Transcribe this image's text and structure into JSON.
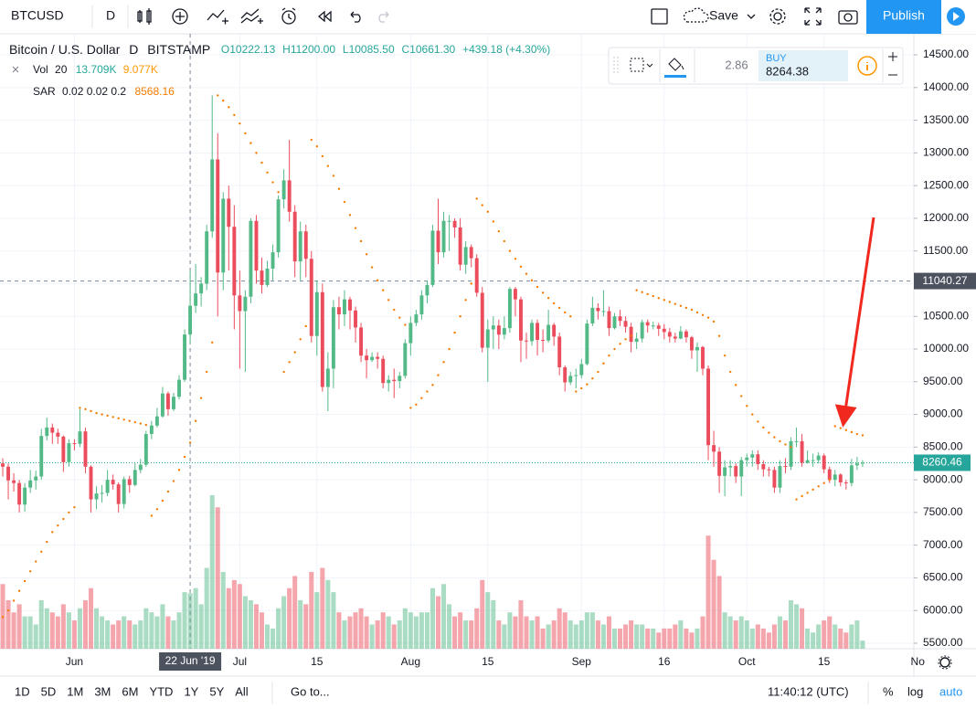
{
  "toolbar": {
    "symbol": "BTCUSD",
    "interval": "D",
    "save": "Save",
    "publish": "Publish"
  },
  "legend": {
    "title": "Bitcoin / U.S. Dollar",
    "interval": "D",
    "exchange": "BITSTAMP",
    "ohlc": [
      "O10222.13",
      "H11200.00",
      "L10085.50",
      "C10661.30"
    ],
    "change": "+439.18 (+4.30%)"
  },
  "indicators": [
    {
      "name": "Vol",
      "params": "20",
      "values": [
        "13.709K",
        "9.077K"
      ]
    },
    {
      "name": "SAR",
      "params": "0.02 0.02 0.2",
      "values": [
        "8568.16"
      ]
    }
  ],
  "trade": {
    "spread": "2.86",
    "side": "BUY",
    "price": "8264.38"
  },
  "chart_data": {
    "type": "candlestick",
    "up_color": "#53b987",
    "down_color": "#eb4d5c",
    "sar_color": "#f57c00",
    "ylim": [
      5416,
      14822
    ],
    "xlim": [
      -0.5,
      165.3
    ],
    "yticks": [
      {
        "value": 5500,
        "label": "5500.00"
      },
      {
        "value": 6000,
        "label": "6000.00"
      },
      {
        "value": 6500,
        "label": "6500.00"
      },
      {
        "value": 7000,
        "label": "7000.00"
      },
      {
        "value": 7500,
        "label": "7500.00"
      },
      {
        "value": 8000,
        "label": "8000.00"
      },
      {
        "value": 8500,
        "label": "8500.00"
      },
      {
        "value": 9000,
        "label": "9000.00"
      },
      {
        "value": 9500,
        "label": "9500.00"
      },
      {
        "value": 10000,
        "label": "10000.00"
      },
      {
        "value": 10500,
        "label": "10500.00"
      },
      {
        "value": 11000,
        "label": "11000.00"
      },
      {
        "value": 11500,
        "label": "11500.00"
      },
      {
        "value": 12000,
        "label": "12000.00"
      },
      {
        "value": 12500,
        "label": "12500.00"
      },
      {
        "value": 13000,
        "label": "13000.00"
      },
      {
        "value": 13500,
        "label": "13500.00"
      },
      {
        "value": 14000,
        "label": "14000.00"
      },
      {
        "value": 14500,
        "label": "14500.00"
      }
    ],
    "xticks": [
      {
        "value": 13,
        "label": "Jun"
      },
      {
        "value": 43,
        "label": "Jul"
      },
      {
        "value": 57,
        "label": "15"
      },
      {
        "value": 74,
        "label": "Aug"
      },
      {
        "value": 88,
        "label": "15"
      },
      {
        "value": 105,
        "label": "Sep"
      },
      {
        "value": 120,
        "label": "16"
      },
      {
        "value": 135,
        "label": "Oct"
      },
      {
        "value": 149,
        "label": "15"
      },
      {
        "value": 166,
        "label": "No"
      }
    ],
    "grid": true,
    "crosshair": {
      "x": 34,
      "x_label": "22 Jun '19",
      "price": 11040.27
    },
    "open": [
      8250,
      8200,
      7990,
      7950,
      7620,
      7880,
      7990,
      8050,
      8670,
      8800,
      8720,
      8660,
      8270,
      8560,
      8550,
      8740,
      8200,
      7700,
      7790,
      7800,
      8000,
      7930,
      7630,
      8010,
      7920,
      8150,
      8230,
      8700,
      8830,
      8970,
      9320,
      9080,
      9270,
      9530,
      10222.13,
      10661.3,
      10850,
      11000,
      11800,
      12900,
      11170,
      12300,
      11870,
      10820,
      10580,
      10800,
      11960,
      11200,
      10980,
      11230,
      11480,
      12290,
      12580,
      12100,
      11340,
      11800,
      11380,
      10200,
      10870,
      9420,
      9700,
      10640,
      10530,
      10760,
      10590,
      10330,
      9900,
      9830,
      9880,
      9850,
      9480,
      9530,
      9510,
      9590,
      10090,
      10400,
      10530,
      10820,
      10980,
      11810,
      11480,
      11960,
      11960,
      11860,
      11290,
      11560,
      11390,
      10860,
      10020,
      10300,
      10360,
      10220,
      10320,
      10920,
      10760,
      10130,
      10120,
      10400,
      10140,
      10130,
      10370,
      10190,
      9720,
      9490,
      9590,
      9600,
      9770,
      10390,
      10630,
      10580,
      10580,
      10320,
      10500,
      10430,
      10340,
      10110,
      10160,
      10410,
      10360,
      10360,
      10310,
      10260,
      10190,
      10160,
      10270,
      10180,
      9980,
      10030,
      9700,
      8530,
      8430,
      8060,
      8190,
      8210,
      8050,
      8300,
      8340,
      8390,
      8240,
      8160,
      8150,
      7880,
      8210,
      8200,
      8590,
      8590,
      8260,
      8300,
      8300,
      8370,
      8160,
      8000,
      8080,
      7960,
      7950,
      8220,
      8250
    ],
    "high": [
      8330,
      8250,
      8100,
      8000,
      7950,
      8150,
      8140,
      8780,
      8950,
      8860,
      8780,
      8680,
      8620,
      8620,
      9080,
      8800,
      8220,
      7900,
      7920,
      8150,
      8080,
      7960,
      8050,
      8060,
      8250,
      8320,
      8750,
      8900,
      9100,
      9420,
      9350,
      9330,
      9600,
      10300,
      11200,
      11300,
      11100,
      11900,
      13880,
      13300,
      12400,
      12500,
      12200,
      11200,
      10900,
      12000,
      12050,
      11400,
      11350,
      11600,
      12350,
      12750,
      13200,
      12200,
      11950,
      11900,
      11500,
      11050,
      11000,
      9950,
      10750,
      10800,
      10900,
      10800,
      10650,
      10400,
      10000,
      9950,
      9950,
      9900,
      9600,
      9700,
      9650,
      10150,
      10500,
      10600,
      10900,
      11050,
      11900,
      12300,
      12100,
      12050,
      12000,
      12000,
      11650,
      11600,
      11450,
      10950,
      10450,
      10500,
      10450,
      10500,
      10950,
      10950,
      10800,
      10250,
      10450,
      10450,
      10300,
      10600,
      10400,
      10250,
      9750,
      9650,
      9700,
      9850,
      10450,
      10800,
      10700,
      10900,
      10650,
      10550,
      10600,
      10500,
      10400,
      10250,
      10450,
      10450,
      10420,
      10400,
      10380,
      10320,
      10250,
      10350,
      10300,
      10200,
      10100,
      10050,
      9750,
      8750,
      8500,
      8300,
      8300,
      8250,
      8350,
      8400,
      8450,
      8450,
      8300,
      8200,
      8200,
      8300,
      8330,
      8650,
      8800,
      8700,
      8450,
      8400,
      8420,
      8400,
      8200,
      8150,
      8100,
      8000,
      8320,
      8350,
      8300
    ],
    "low": [
      8050,
      7700,
      7820,
      7500,
      7510,
      7800,
      7850,
      8000,
      8600,
      8550,
      8550,
      8120,
      8200,
      8450,
      8500,
      8100,
      7500,
      7550,
      7650,
      7750,
      7850,
      7500,
      7560,
      7800,
      7900,
      8100,
      8200,
      8620,
      8800,
      8950,
      8980,
      9050,
      9230,
      9500,
      10085.5,
      10550,
      10650,
      10900,
      11700,
      10500,
      10900,
      11200,
      10300,
      9700,
      9650,
      10700,
      11000,
      10850,
      10950,
      11050,
      11400,
      12150,
      11950,
      11100,
      11050,
      11100,
      10100,
      9900,
      9350,
      9050,
      9400,
      10300,
      10350,
      10300,
      10100,
      9800,
      9550,
      9800,
      9700,
      9400,
      9350,
      9250,
      9400,
      9550,
      9900,
      10350,
      10450,
      10700,
      10950,
      11300,
      11400,
      11500,
      11700,
      11200,
      11150,
      11250,
      10800,
      9950,
      9500,
      10000,
      10000,
      10150,
      10250,
      10500,
      9800,
      9850,
      10050,
      9900,
      9950,
      10100,
      10050,
      9600,
      9350,
      9450,
      9400,
      9550,
      9750,
      10350,
      10450,
      10500,
      10200,
      10300,
      10350,
      10250,
      9950,
      10000,
      10100,
      10250,
      10300,
      10200,
      10150,
      10100,
      10100,
      10150,
      10100,
      9850,
      9650,
      9600,
      8300,
      8200,
      7800,
      7750,
      8050,
      7950,
      7750,
      8200,
      8200,
      8150,
      8050,
      8050,
      7800,
      7800,
      8100,
      8150,
      8500,
      8200,
      8250,
      8200,
      8250,
      8100,
      7950,
      7900,
      7900,
      7850,
      7900,
      8150,
      8200
    ],
    "close": [
      8200,
      7990,
      7950,
      7620,
      7880,
      7990,
      8050,
      8670,
      8800,
      8720,
      8660,
      8270,
      8560,
      8550,
      8740,
      8200,
      7700,
      7790,
      7800,
      8000,
      7930,
      7630,
      8010,
      7920,
      8150,
      8230,
      8700,
      8830,
      8970,
      9320,
      9080,
      9270,
      9530,
      10222.13,
      10661.3,
      10850,
      11000,
      11800,
      12900,
      11170,
      12300,
      11870,
      10820,
      10580,
      10800,
      11960,
      11200,
      10980,
      11230,
      11480,
      12290,
      12580,
      12100,
      11340,
      11800,
      11380,
      10200,
      10870,
      9420,
      9700,
      10640,
      10530,
      10760,
      10590,
      10330,
      9900,
      9830,
      9880,
      9850,
      9480,
      9530,
      9510,
      9590,
      10090,
      10400,
      10530,
      10820,
      10980,
      11810,
      11480,
      11960,
      11960,
      11860,
      11290,
      11560,
      11390,
      10860,
      10020,
      10300,
      10360,
      10220,
      10320,
      10920,
      10760,
      10130,
      10120,
      10400,
      10140,
      10130,
      10370,
      10190,
      9720,
      9490,
      9590,
      9600,
      9770,
      10390,
      10630,
      10580,
      10580,
      10320,
      10500,
      10430,
      10340,
      10110,
      10160,
      10410,
      10360,
      10360,
      10310,
      10260,
      10190,
      10160,
      10270,
      10180,
      9980,
      10030,
      9700,
      8530,
      8430,
      8060,
      8190,
      8210,
      8050,
      8300,
      8340,
      8390,
      8240,
      8160,
      8150,
      7880,
      8210,
      8200,
      8590,
      8590,
      8260,
      8300,
      8300,
      8370,
      8160,
      8000,
      8080,
      7960,
      7950,
      8220,
      8250,
      8260.46
    ],
    "volume": [
      16,
      12,
      9,
      11,
      8,
      8,
      6,
      12,
      10,
      9,
      8,
      11,
      9,
      7,
      10,
      12,
      15,
      10,
      8,
      7,
      6,
      7,
      8,
      7,
      6,
      7,
      10,
      9,
      8,
      11,
      8,
      7,
      9,
      14,
      13.709,
      15,
      11,
      20,
      38,
      35,
      19,
      15,
      17,
      16,
      13,
      12,
      11,
      9,
      6,
      5,
      10,
      13,
      15,
      18,
      12,
      11,
      19,
      14,
      20,
      17,
      14,
      9,
      7,
      8,
      9,
      10,
      8,
      6,
      7,
      9,
      8,
      6,
      7,
      10,
      9,
      8,
      9,
      9,
      15,
      13,
      16,
      11,
      8,
      9,
      7,
      7,
      10,
      17,
      14,
      12,
      7,
      6,
      9,
      8,
      12,
      8,
      7,
      8,
      5,
      6,
      7,
      10,
      9,
      7,
      6,
      7,
      9,
      9,
      7,
      6,
      8,
      5,
      5,
      6,
      7,
      6,
      6,
      5,
      5,
      4,
      5,
      5,
      6,
      7,
      5,
      4,
      5,
      8,
      28,
      22,
      18,
      9,
      8,
      7,
      8,
      7,
      5,
      6,
      5,
      4,
      6,
      8,
      7,
      12,
      11,
      10,
      5,
      4,
      6,
      7,
      8,
      6,
      5,
      4,
      6,
      7,
      2
    ],
    "sar": [
      5900,
      6000,
      6150,
      6300,
      6450,
      6600,
      6750,
      6900,
      7050,
      7200,
      7300,
      7400,
      7500,
      7580,
      9100,
      9080,
      9050,
      9020,
      9000,
      8980,
      8960,
      8940,
      8920,
      8900,
      8880,
      8860,
      8840,
      7450,
      7550,
      7680,
      7820,
      7980,
      8150,
      8350,
      8568.16,
      8900,
      9250,
      9650,
      10100,
      13880,
      13800,
      13700,
      13580,
      13450,
      13300,
      13150,
      13000,
      12850,
      12700,
      12550,
      12400,
      9650,
      9800,
      9950,
      10150,
      10350,
      13200,
      13100,
      12950,
      12800,
      12650,
      12450,
      12250,
      12050,
      11850,
      11650,
      11450,
      11250,
      11050,
      10900,
      10750,
      10600,
      10480,
      10370,
      9100,
      9150,
      9250,
      9350,
      9450,
      9600,
      9800,
      10000,
      10250,
      10500,
      10750,
      11000,
      12300,
      12200,
      12100,
      11950,
      11800,
      11650,
      11500,
      11380,
      11260,
      11150,
      11050,
      10950,
      10860,
      10780,
      10700,
      10630,
      10560,
      10500,
      9350,
      9400,
      9460,
      9550,
      9650,
      9780,
      9900,
      10000,
      10080,
      10150,
      10200,
      10900,
      10870,
      10840,
      10810,
      10780,
      10750,
      10720,
      10690,
      10660,
      10630,
      10600,
      10560,
      10520,
      10480,
      10420,
      10200,
      9900,
      9650,
      9450,
      9280,
      9130,
      9000,
      8890,
      8800,
      8720,
      8650,
      8590,
      8540,
      8500,
      7700,
      7750,
      7800,
      7850,
      7900,
      7950,
      8000,
      8820,
      8790,
      8760,
      8730,
      8700,
      8680
    ]
  },
  "range_bar": {
    "ranges": [
      "1D",
      "5D",
      "1M",
      "3M",
      "6M",
      "YTD",
      "1Y",
      "5Y",
      "All"
    ],
    "goto": "Go to...",
    "time": "11:40:12 (UTC)",
    "options": [
      "%",
      "log",
      "auto"
    ]
  }
}
